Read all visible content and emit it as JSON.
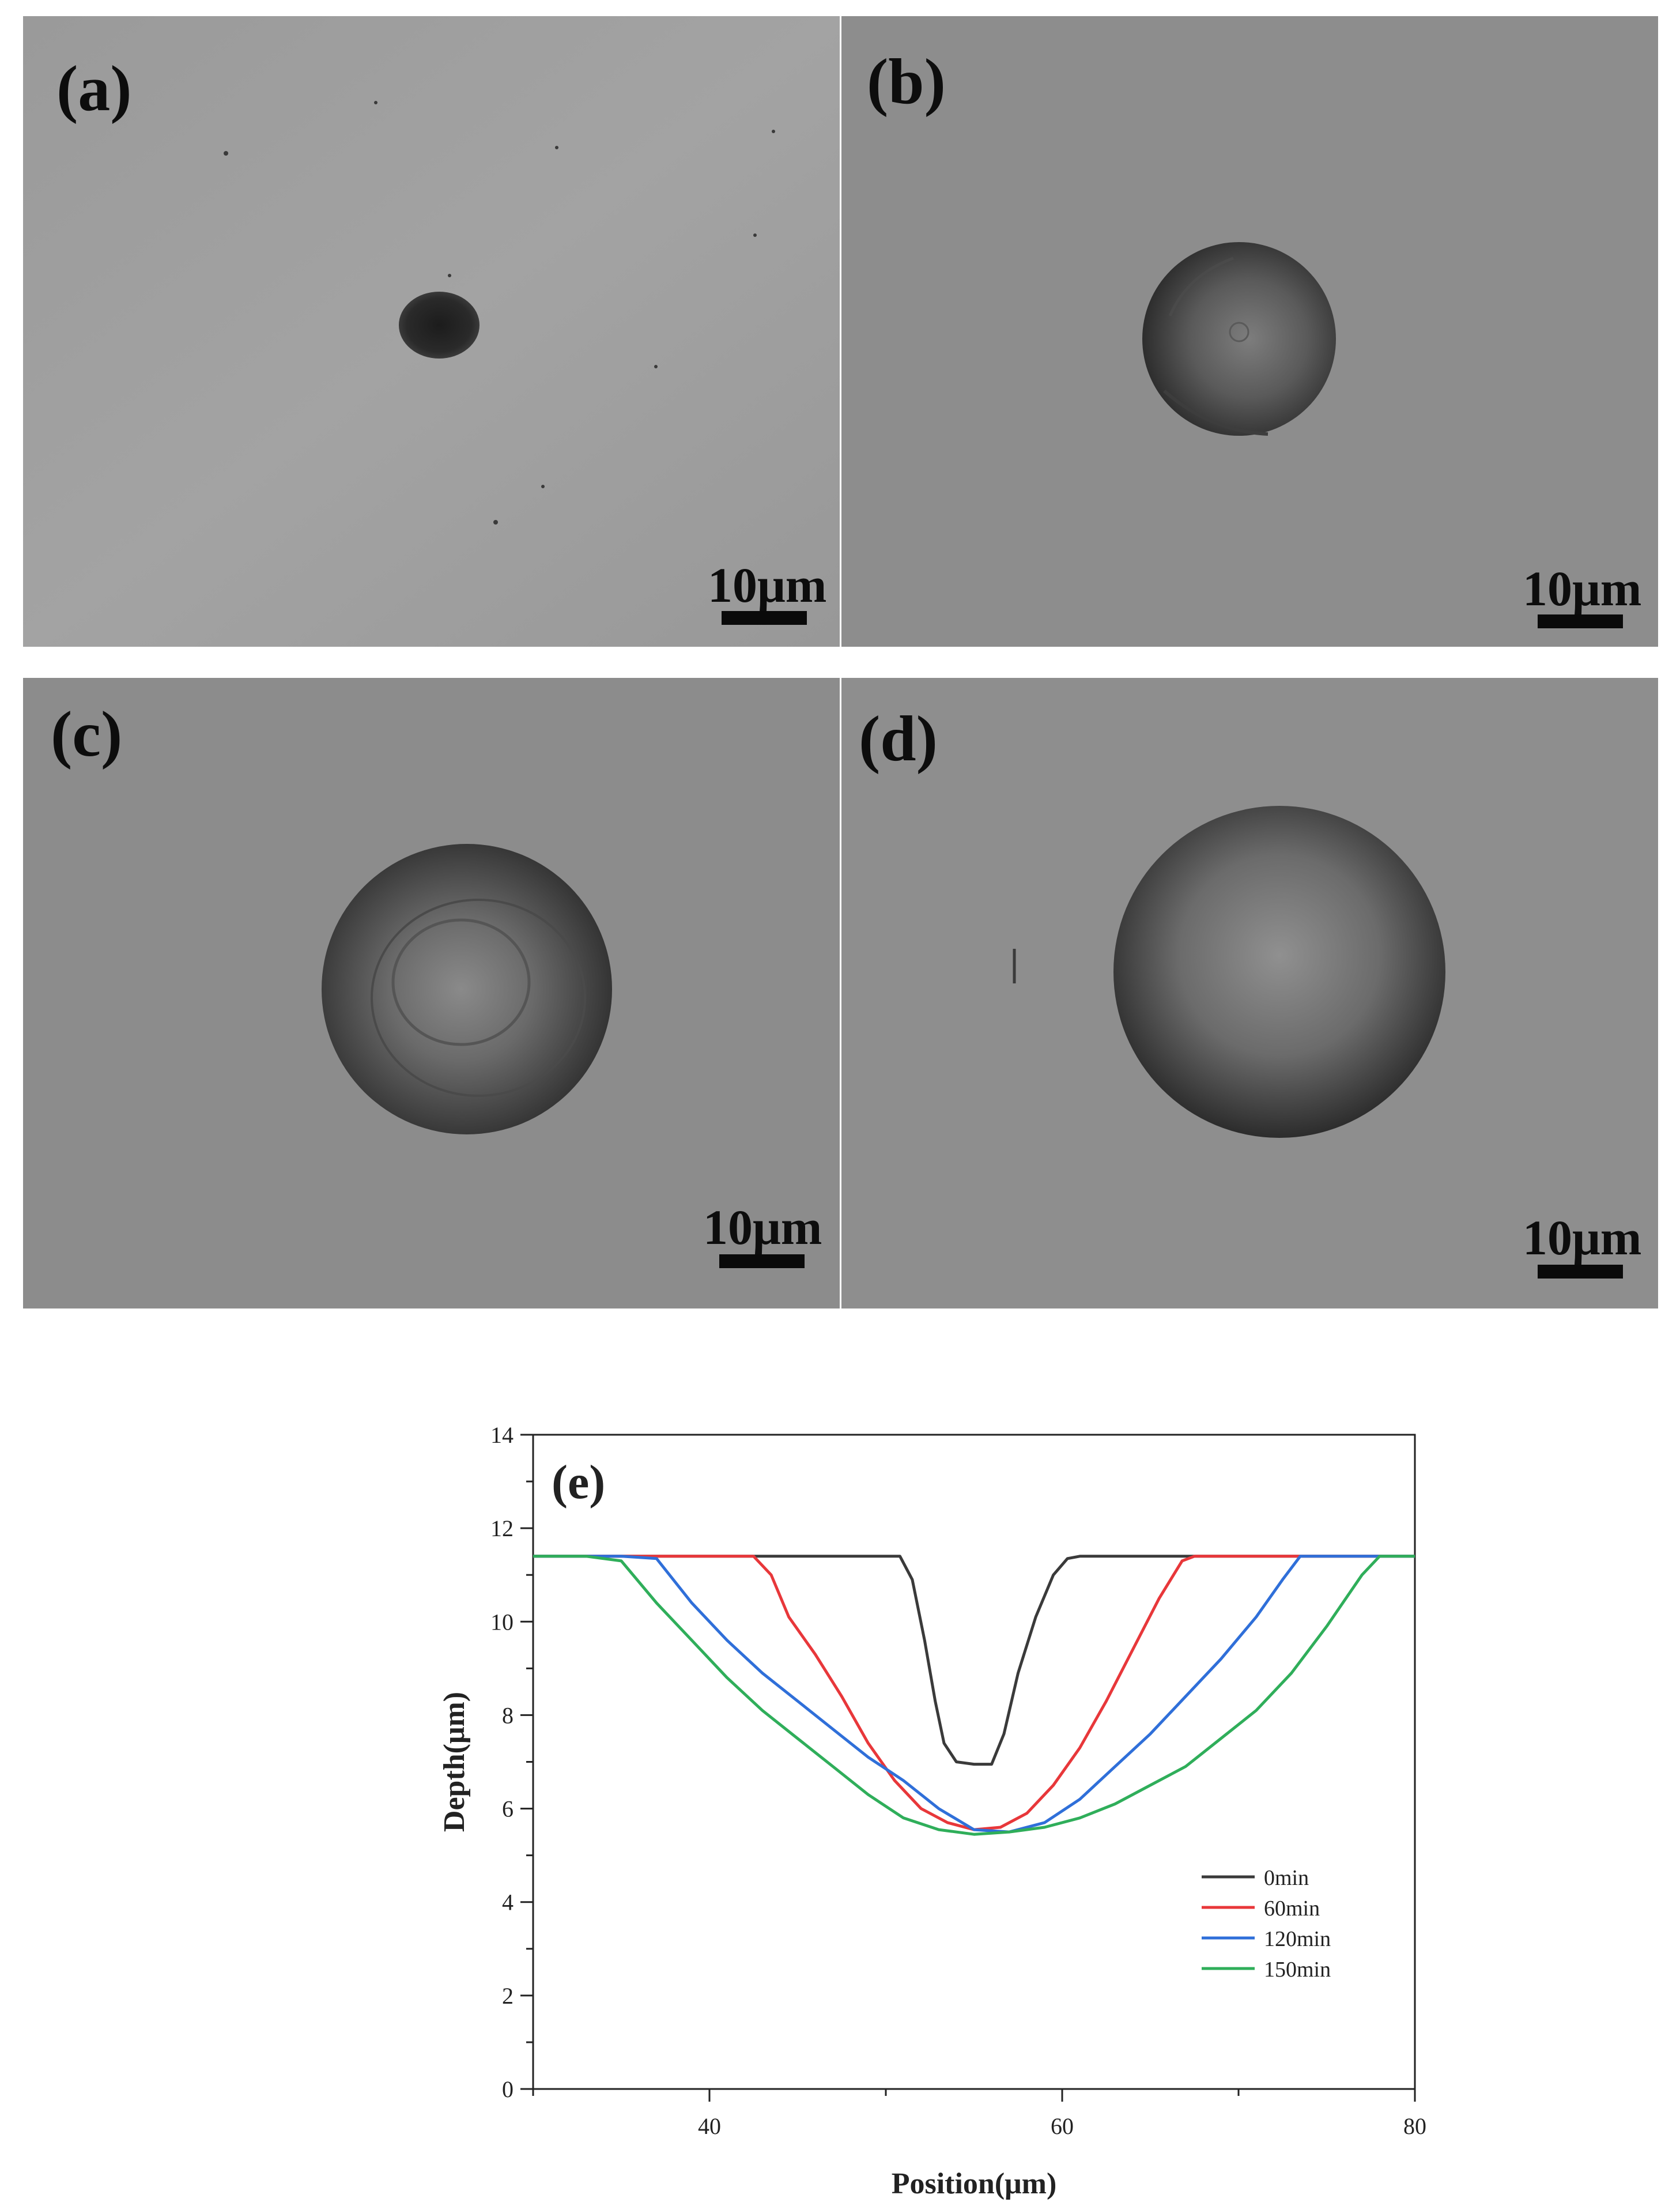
{
  "panels": [
    {
      "label": "(a)",
      "scale_bar": "10μm"
    },
    {
      "label": "(b)",
      "scale_bar": "10μm"
    },
    {
      "label": "(c)",
      "scale_bar": "10μm"
    },
    {
      "label": "(d)",
      "scale_bar": "10μm"
    }
  ],
  "colors": {
    "series_0min": "#3a3a3a",
    "series_60min": "#e8373a",
    "series_120min": "#2f6fd9",
    "series_150min": "#2fae5a",
    "sem_background": "#8f8f8f"
  },
  "chart_data": {
    "type": "line",
    "panel_label": "(e)",
    "xlabel": "Position(μm)",
    "ylabel": "Depth(μm)",
    "xlim": [
      30,
      80
    ],
    "ylim": [
      0,
      14
    ],
    "xticks": [
      40,
      60,
      80
    ],
    "yticks": [
      0,
      2,
      4,
      6,
      8,
      10,
      12,
      14
    ],
    "grid": false,
    "legend_position": "lower-right",
    "series": [
      {
        "name": "0min",
        "color_key": "series_0min",
        "x": [
          30,
          40,
          50,
          50.8,
          51.5,
          52.2,
          52.8,
          53.3,
          54,
          55,
          56,
          56.7,
          57.5,
          58.5,
          59.5,
          60.3,
          61,
          62,
          70,
          80
        ],
        "y": [
          11.4,
          11.4,
          11.4,
          11.4,
          10.9,
          9.6,
          8.3,
          7.4,
          7.0,
          6.95,
          6.95,
          7.6,
          8.9,
          10.1,
          11.0,
          11.35,
          11.4,
          11.4,
          11.4,
          11.4
        ]
      },
      {
        "name": "60min",
        "color_key": "series_60min",
        "x": [
          30,
          35,
          40,
          42.5,
          43.5,
          44.5,
          46,
          47.5,
          49,
          50.5,
          52,
          53.5,
          55,
          56.5,
          58,
          59.5,
          61,
          62.5,
          64,
          65.5,
          66.8,
          67.5,
          70,
          80
        ],
        "y": [
          11.4,
          11.4,
          11.4,
          11.4,
          11.0,
          10.1,
          9.3,
          8.4,
          7.4,
          6.6,
          6.0,
          5.7,
          5.55,
          5.6,
          5.9,
          6.5,
          7.3,
          8.3,
          9.4,
          10.5,
          11.3,
          11.4,
          11.4,
          11.4
        ]
      },
      {
        "name": "120min",
        "color_key": "series_120min",
        "x": [
          30,
          35,
          37,
          39,
          41,
          43,
          45,
          47,
          49,
          51,
          53,
          55,
          57,
          59,
          61,
          63,
          65,
          67,
          69,
          71,
          72.5,
          73.5,
          76,
          80
        ],
        "y": [
          11.4,
          11.4,
          11.35,
          10.4,
          9.6,
          8.9,
          8.3,
          7.7,
          7.1,
          6.6,
          6.0,
          5.55,
          5.5,
          5.7,
          6.2,
          6.9,
          7.6,
          8.4,
          9.2,
          10.1,
          10.9,
          11.4,
          11.4,
          11.4
        ]
      },
      {
        "name": "150min",
        "color_key": "series_150min",
        "x": [
          30,
          33,
          35,
          37,
          39,
          41,
          43,
          45,
          47,
          49,
          51,
          53,
          55,
          57,
          59,
          61,
          63,
          65,
          67,
          69,
          71,
          73,
          75,
          77,
          78,
          80
        ],
        "y": [
          11.4,
          11.4,
          11.3,
          10.4,
          9.6,
          8.8,
          8.1,
          7.5,
          6.9,
          6.3,
          5.8,
          5.55,
          5.45,
          5.5,
          5.6,
          5.8,
          6.1,
          6.5,
          6.9,
          7.5,
          8.1,
          8.9,
          9.9,
          11.0,
          11.4,
          11.4
        ]
      }
    ]
  }
}
